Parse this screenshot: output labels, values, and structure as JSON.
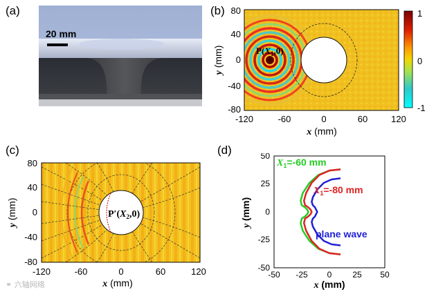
{
  "panels": {
    "a": {
      "label": "(a)",
      "scale_bar_label": "20 mm"
    },
    "b": {
      "label": "(b)",
      "point_label": "P(X₁,0)",
      "point_main": "P(",
      "point_var": "X",
      "point_sub": "1",
      "point_tail": ",0)",
      "xlabel_var": "x",
      "xlabel_unit": " (mm)",
      "ylabel_var": "y",
      "ylabel_unit": " (mm)",
      "xticks": [
        "-120",
        "-60",
        "0",
        "60",
        "120"
      ],
      "yticks": [
        "80",
        "40",
        "0",
        "-40",
        "-80"
      ],
      "colorbar_ticks": [
        "1",
        "0",
        "-1"
      ]
    },
    "c": {
      "label": "(c)",
      "point_main": "P′(",
      "point_var": "X",
      "point_sub": "2",
      "point_tail": ",0)",
      "xlabel_var": "x",
      "xlabel_unit": " (mm)",
      "ylabel_var": "y",
      "ylabel_unit": " (mm)",
      "xticks": [
        "-120",
        "-60",
        "0",
        "60",
        "120"
      ],
      "yticks": [
        "80",
        "40",
        "0",
        "-40",
        "-80"
      ]
    },
    "d": {
      "label": "(d)"
    }
  },
  "watermark": "六轴网络",
  "chart_data": {
    "type": "line",
    "xlabel_var": "x",
    "xlabel_unit": " (mm)",
    "ylabel_var": "y",
    "ylabel_unit": " (mm)",
    "xlim": [
      -50,
      50
    ],
    "ylim": [
      -50,
      50
    ],
    "xticks": [
      "-50",
      "-25",
      "0",
      "25",
      "50"
    ],
    "yticks": [
      "50",
      "25",
      "0",
      "-25",
      "-50"
    ],
    "annotations": [
      {
        "var": "X",
        "sub": "1",
        "text": "=-60 mm",
        "color": "#22cc22"
      },
      {
        "var": "X",
        "sub": "1",
        "text": "=-80 mm",
        "color": "#dd2222"
      },
      {
        "text": "plane wave",
        "color": "#1f1fd6"
      }
    ],
    "series": [
      {
        "color": "#22cc22",
        "points": [
          [
            10,
            38
          ],
          [
            0,
            37
          ],
          [
            -10,
            33
          ],
          [
            -18,
            26
          ],
          [
            -24,
            17
          ],
          [
            -26,
            10
          ],
          [
            -25,
            6
          ],
          [
            -22,
            4
          ],
          [
            -20,
            2
          ],
          [
            -19,
            0
          ],
          [
            -20,
            -2
          ],
          [
            -22,
            -4
          ],
          [
            -25,
            -6
          ],
          [
            -26,
            -10
          ],
          [
            -24,
            -17
          ],
          [
            -18,
            -26
          ],
          [
            -10,
            -33
          ],
          [
            0,
            -37
          ],
          [
            10,
            -38
          ]
        ]
      },
      {
        "color": "#dd2222",
        "points": [
          [
            10,
            38
          ],
          [
            0,
            37
          ],
          [
            -9,
            33
          ],
          [
            -16,
            26
          ],
          [
            -21,
            17
          ],
          [
            -23,
            10
          ],
          [
            -22,
            6
          ],
          [
            -19,
            4
          ],
          [
            -17,
            2
          ],
          [
            -16,
            0
          ],
          [
            -17,
            -2
          ],
          [
            -19,
            -4
          ],
          [
            -22,
            -6
          ],
          [
            -23,
            -10
          ],
          [
            -21,
            -17
          ],
          [
            -16,
            -26
          ],
          [
            -9,
            -33
          ],
          [
            0,
            -37
          ],
          [
            10,
            -38
          ]
        ]
      },
      {
        "color": "#1f1fd6",
        "points": [
          [
            10,
            30
          ],
          [
            2,
            29
          ],
          [
            -5,
            26
          ],
          [
            -11,
            20
          ],
          [
            -15,
            13
          ],
          [
            -16,
            9
          ],
          [
            -15,
            6
          ],
          [
            -13,
            4
          ],
          [
            -12,
            2
          ],
          [
            -11,
            0
          ],
          [
            -12,
            -2
          ],
          [
            -13,
            -4
          ],
          [
            -15,
            -6
          ],
          [
            -16,
            -9
          ],
          [
            -15,
            -13
          ],
          [
            -11,
            -20
          ],
          [
            -5,
            -26
          ],
          [
            2,
            -29
          ],
          [
            10,
            -30
          ]
        ]
      }
    ]
  }
}
